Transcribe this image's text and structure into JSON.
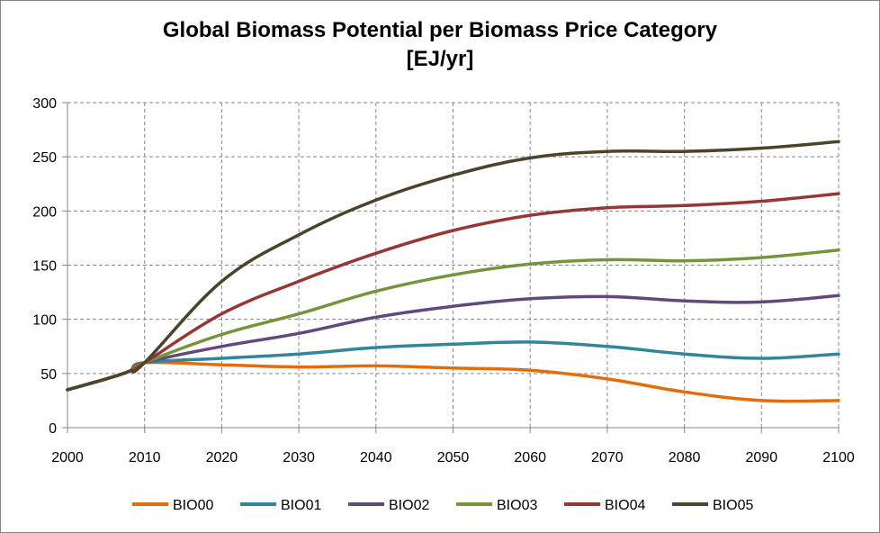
{
  "chart_data": {
    "type": "line",
    "title": "Global Biomass Potential per Biomass Price Category",
    "subtitle": "[EJ/yr]",
    "xlabel": "",
    "ylabel": "",
    "xlim": [
      2000,
      2100
    ],
    "ylim": [
      0,
      300
    ],
    "x_ticks": [
      2000,
      2010,
      2020,
      2030,
      2040,
      2050,
      2060,
      2070,
      2080,
      2090,
      2100
    ],
    "y_ticks": [
      0,
      50,
      100,
      150,
      200,
      250,
      300
    ],
    "grid": true,
    "legend_position": "bottom",
    "x": [
      2000,
      2005,
      2008,
      2010,
      2020,
      2030,
      2040,
      2050,
      2060,
      2070,
      2080,
      2090,
      2100
    ],
    "series": [
      {
        "name": "BIO00",
        "color": "#E46C0A",
        "values": [
          35,
          45,
          52,
          60,
          58,
          56,
          57,
          55,
          53,
          45,
          33,
          25,
          25
        ]
      },
      {
        "name": "BIO01",
        "color": "#31859C",
        "values": [
          35,
          45,
          52,
          60,
          64,
          68,
          74,
          77,
          79,
          75,
          68,
          64,
          68
        ]
      },
      {
        "name": "BIO02",
        "color": "#604A7B",
        "values": [
          35,
          45,
          52,
          60,
          75,
          87,
          102,
          112,
          119,
          121,
          117,
          116,
          122
        ]
      },
      {
        "name": "BIO03",
        "color": "#77933C",
        "values": [
          35,
          45,
          52,
          60,
          86,
          105,
          126,
          141,
          151,
          155,
          154,
          157,
          164
        ]
      },
      {
        "name": "BIO04",
        "color": "#953735",
        "values": [
          35,
          45,
          52,
          60,
          105,
          135,
          161,
          182,
          196,
          203,
          205,
          209,
          216
        ]
      },
      {
        "name": "BIO05",
        "color": "#4A452A",
        "values": [
          35,
          45,
          52,
          60,
          135,
          178,
          210,
          233,
          249,
          255,
          255,
          258,
          264
        ]
      }
    ]
  }
}
